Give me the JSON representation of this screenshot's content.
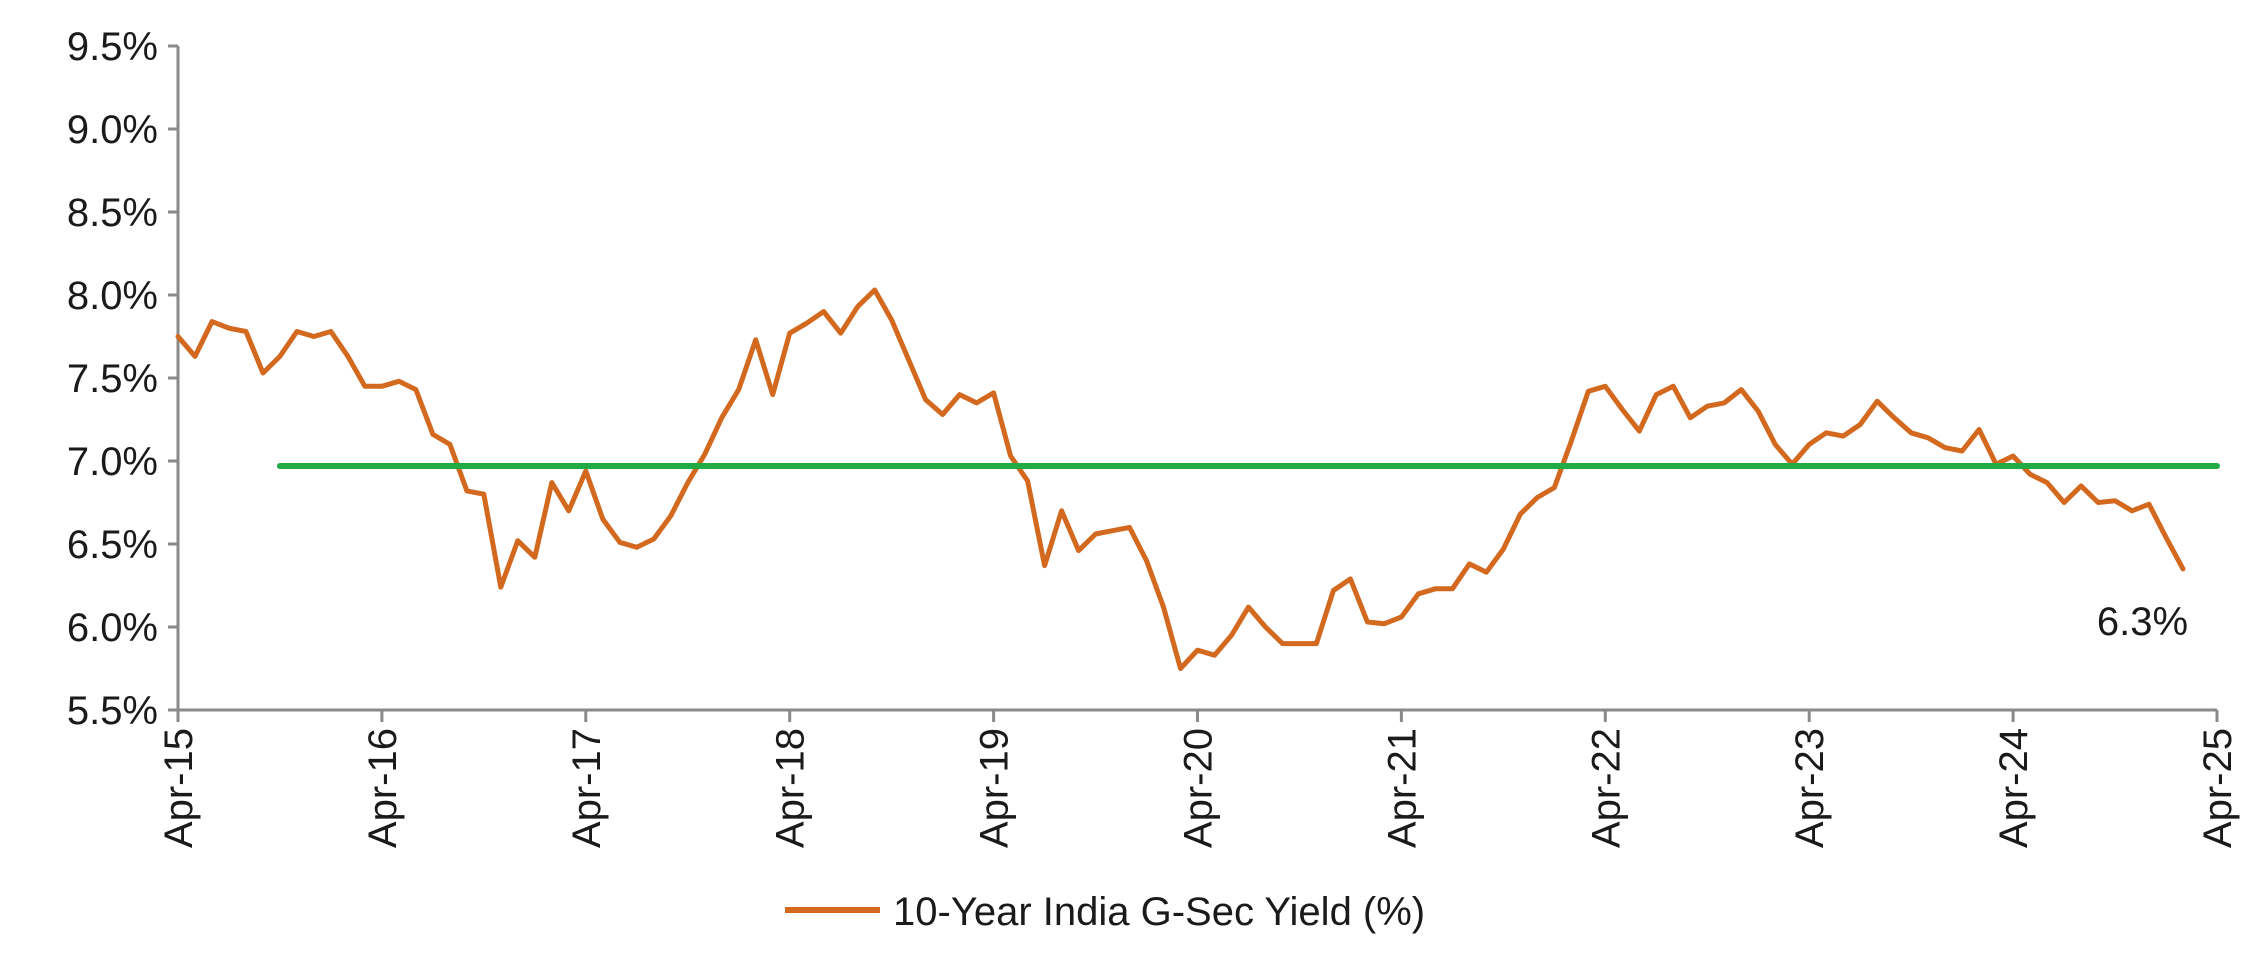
{
  "chart_data": {
    "type": "line",
    "title": "",
    "xlabel": "",
    "ylabel": "",
    "ylim": [
      5.5,
      9.5
    ],
    "y_ticks": [
      "5.5%",
      "6.0%",
      "6.5%",
      "7.0%",
      "7.5%",
      "8.0%",
      "8.5%",
      "9.0%",
      "9.5%"
    ],
    "x_range": [
      "2015-04",
      "2025-04"
    ],
    "x_ticks": [
      {
        "date": "2015-04",
        "label": "Apr-15"
      },
      {
        "date": "2016-04",
        "label": "Apr-16"
      },
      {
        "date": "2017-04",
        "label": "Apr-17"
      },
      {
        "date": "2018-04",
        "label": "Apr-18"
      },
      {
        "date": "2019-04",
        "label": "Apr-19"
      },
      {
        "date": "2020-04",
        "label": "Apr-20"
      },
      {
        "date": "2021-04",
        "label": "Apr-21"
      },
      {
        "date": "2022-04",
        "label": "Apr-22"
      },
      {
        "date": "2023-04",
        "label": "Apr-23"
      },
      {
        "date": "2024-04",
        "label": "Apr-24"
      },
      {
        "date": "2025-04",
        "label": "Apr-25"
      }
    ],
    "grid": false,
    "legend_position": "bottom-center",
    "series": [
      {
        "name": "10-Year India G-Sec Yield (%)",
        "color": "#D2691E",
        "points": [
          [
            "2015-04",
            7.75
          ],
          [
            "2015-05",
            7.63
          ],
          [
            "2015-06",
            7.84
          ],
          [
            "2015-07",
            7.8
          ],
          [
            "2015-08",
            7.78
          ],
          [
            "2015-09",
            7.53
          ],
          [
            "2015-10",
            7.63
          ],
          [
            "2015-11",
            7.78
          ],
          [
            "2015-12",
            7.75
          ],
          [
            "2016-01",
            7.78
          ],
          [
            "2016-02",
            7.63
          ],
          [
            "2016-03",
            7.45
          ],
          [
            "2016-04",
            7.45
          ],
          [
            "2016-05",
            7.48
          ],
          [
            "2016-06",
            7.43
          ],
          [
            "2016-07",
            7.16
          ],
          [
            "2016-08",
            7.1
          ],
          [
            "2016-09",
            6.82
          ],
          [
            "2016-10",
            6.8
          ],
          [
            "2016-11",
            6.24
          ],
          [
            "2016-12",
            6.52
          ],
          [
            "2017-01",
            6.42
          ],
          [
            "2017-02",
            6.87
          ],
          [
            "2017-03",
            6.7
          ],
          [
            "2017-04",
            6.94
          ],
          [
            "2017-05",
            6.65
          ],
          [
            "2017-06",
            6.51
          ],
          [
            "2017-07",
            6.48
          ],
          [
            "2017-08",
            6.53
          ],
          [
            "2017-09",
            6.67
          ],
          [
            "2017-10",
            6.87
          ],
          [
            "2017-11",
            7.04
          ],
          [
            "2017-12",
            7.26
          ],
          [
            "2018-01",
            7.43
          ],
          [
            "2018-02",
            7.73
          ],
          [
            "2018-03",
            7.4
          ],
          [
            "2018-04",
            7.77
          ],
          [
            "2018-05",
            7.83
          ],
          [
            "2018-06",
            7.9
          ],
          [
            "2018-07",
            7.77
          ],
          [
            "2018-08",
            7.93
          ],
          [
            "2018-09",
            8.03
          ],
          [
            "2018-10",
            7.85
          ],
          [
            "2018-11",
            7.61
          ],
          [
            "2018-12",
            7.37
          ],
          [
            "2019-01",
            7.28
          ],
          [
            "2019-02",
            7.4
          ],
          [
            "2019-03",
            7.35
          ],
          [
            "2019-04",
            7.41
          ],
          [
            "2019-05",
            7.03
          ],
          [
            "2019-06",
            6.88
          ],
          [
            "2019-07",
            6.37
          ],
          [
            "2019-08",
            6.7
          ],
          [
            "2019-09",
            6.46
          ],
          [
            "2019-10",
            6.56
          ],
          [
            "2019-11",
            6.58
          ],
          [
            "2019-12",
            6.6
          ],
          [
            "2020-01",
            6.4
          ],
          [
            "2020-02",
            6.12
          ],
          [
            "2020-03",
            5.75
          ],
          [
            "2020-04",
            5.86
          ],
          [
            "2020-05",
            5.83
          ],
          [
            "2020-06",
            5.95
          ],
          [
            "2020-07",
            6.12
          ],
          [
            "2020-08",
            6.0
          ],
          [
            "2020-09",
            5.9
          ],
          [
            "2020-10",
            5.9
          ],
          [
            "2020-11",
            5.9
          ],
          [
            "2020-12",
            6.22
          ],
          [
            "2021-01",
            6.29
          ],
          [
            "2021-02",
            6.03
          ],
          [
            "2021-03",
            6.02
          ],
          [
            "2021-04",
            6.06
          ],
          [
            "2021-05",
            6.2
          ],
          [
            "2021-06",
            6.23
          ],
          [
            "2021-07",
            6.23
          ],
          [
            "2021-08",
            6.38
          ],
          [
            "2021-09",
            6.33
          ],
          [
            "2021-10",
            6.47
          ],
          [
            "2021-11",
            6.68
          ],
          [
            "2021-12",
            6.78
          ],
          [
            "2022-01",
            6.84
          ],
          [
            "2022-02",
            7.12
          ],
          [
            "2022-03",
            7.42
          ],
          [
            "2022-04",
            7.45
          ],
          [
            "2022-05",
            7.31
          ],
          [
            "2022-06",
            7.18
          ],
          [
            "2022-07",
            7.4
          ],
          [
            "2022-08",
            7.45
          ],
          [
            "2022-09",
            7.26
          ],
          [
            "2022-10",
            7.33
          ],
          [
            "2022-11",
            7.35
          ],
          [
            "2022-12",
            7.43
          ],
          [
            "2023-01",
            7.3
          ],
          [
            "2023-02",
            7.1
          ],
          [
            "2023-03",
            6.98
          ],
          [
            "2023-04",
            7.1
          ],
          [
            "2023-05",
            7.17
          ],
          [
            "2023-06",
            7.15
          ],
          [
            "2023-07",
            7.22
          ],
          [
            "2023-08",
            7.36
          ],
          [
            "2023-09",
            7.26
          ],
          [
            "2023-10",
            7.17
          ],
          [
            "2023-11",
            7.14
          ],
          [
            "2023-12",
            7.08
          ],
          [
            "2024-01",
            7.06
          ],
          [
            "2024-02",
            7.19
          ],
          [
            "2024-03",
            6.98
          ],
          [
            "2024-04",
            7.03
          ],
          [
            "2024-05",
            6.92
          ],
          [
            "2024-06",
            6.87
          ],
          [
            "2024-07",
            6.75
          ],
          [
            "2024-08",
            6.85
          ],
          [
            "2024-09",
            6.75
          ],
          [
            "2024-10",
            6.76
          ],
          [
            "2024-11",
            6.7
          ],
          [
            "2024-12",
            6.74
          ],
          [
            "2025-01",
            6.54
          ],
          [
            "2025-02",
            6.35
          ]
        ]
      },
      {
        "name": "",
        "color": "#22AA44",
        "points": [
          [
            "2015-10",
            6.97
          ],
          [
            "2025-04",
            6.97
          ]
        ]
      }
    ],
    "annotations": [
      {
        "text": "6.3%",
        "x": "2025-02",
        "y": 6.35
      }
    ]
  }
}
